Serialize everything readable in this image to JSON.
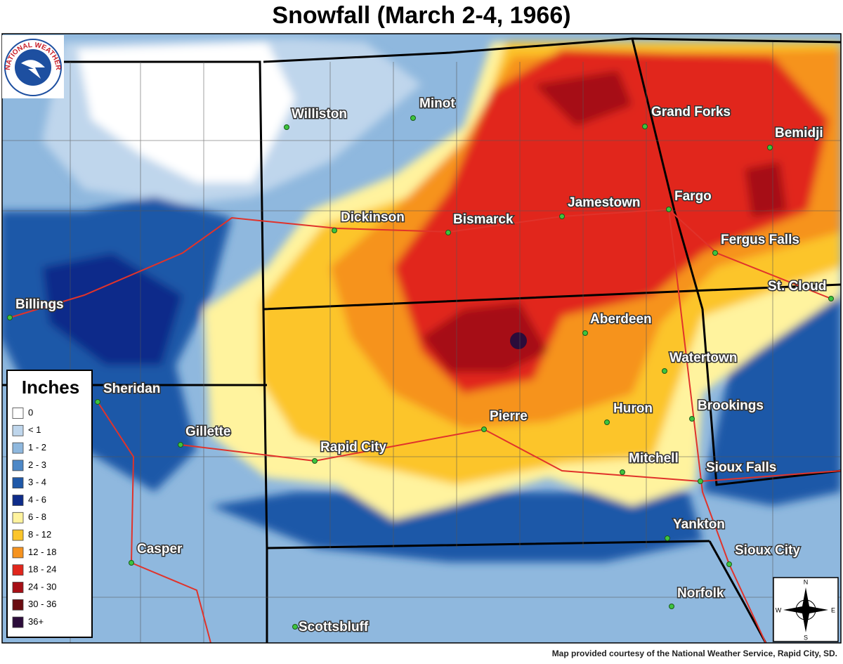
{
  "title": "Snowfall (March 2-4, 1966)",
  "logo": "NATIONAL WEATHER SERVICE",
  "cities": [
    "Williston",
    "Minot",
    "Grand Forks",
    "Bemidji",
    "Dickinson",
    "Bismarck",
    "Jamestown",
    "Fargo",
    "Fergus Falls",
    "Billings",
    "St. Cloud",
    "Aberdeen",
    "Watertown",
    "Sheridan",
    "Huron",
    "Brookings",
    "Pierre",
    "Gillette",
    "Rapid City",
    "Mitchell",
    "Sioux Falls",
    "Yankton",
    "Casper",
    "Sioux City",
    "Norfolk",
    "Scottsbluff"
  ],
  "legend": {
    "title": "Inches",
    "items": [
      {
        "label": "0",
        "color": "#ffffff"
      },
      {
        "label": "< 1",
        "color": "#bfd6ec"
      },
      {
        "label": "1 - 2",
        "color": "#8fb8de"
      },
      {
        "label": "2 - 3",
        "color": "#4d88c7"
      },
      {
        "label": "3 - 4",
        "color": "#1f58a8"
      },
      {
        "label": "4 - 6",
        "color": "#0e2c8a"
      },
      {
        "label": "6 - 8",
        "color": "#fff39e"
      },
      {
        "label": "8 - 12",
        "color": "#fcc52a"
      },
      {
        "label": "12 - 18",
        "color": "#f6931f"
      },
      {
        "label": "18 - 24",
        "color": "#e1261c"
      },
      {
        "label": "24 - 30",
        "color": "#a60f16"
      },
      {
        "label": "30 - 36",
        "color": "#6a0b10"
      },
      {
        "label": "36+",
        "color": "#2b0c3a"
      }
    ]
  },
  "compass": {
    "n": "N",
    "e": "E",
    "s": "S",
    "w": "W"
  },
  "credit": "Map provided courtesy of the National Weather Service, Rapid City, SD."
}
